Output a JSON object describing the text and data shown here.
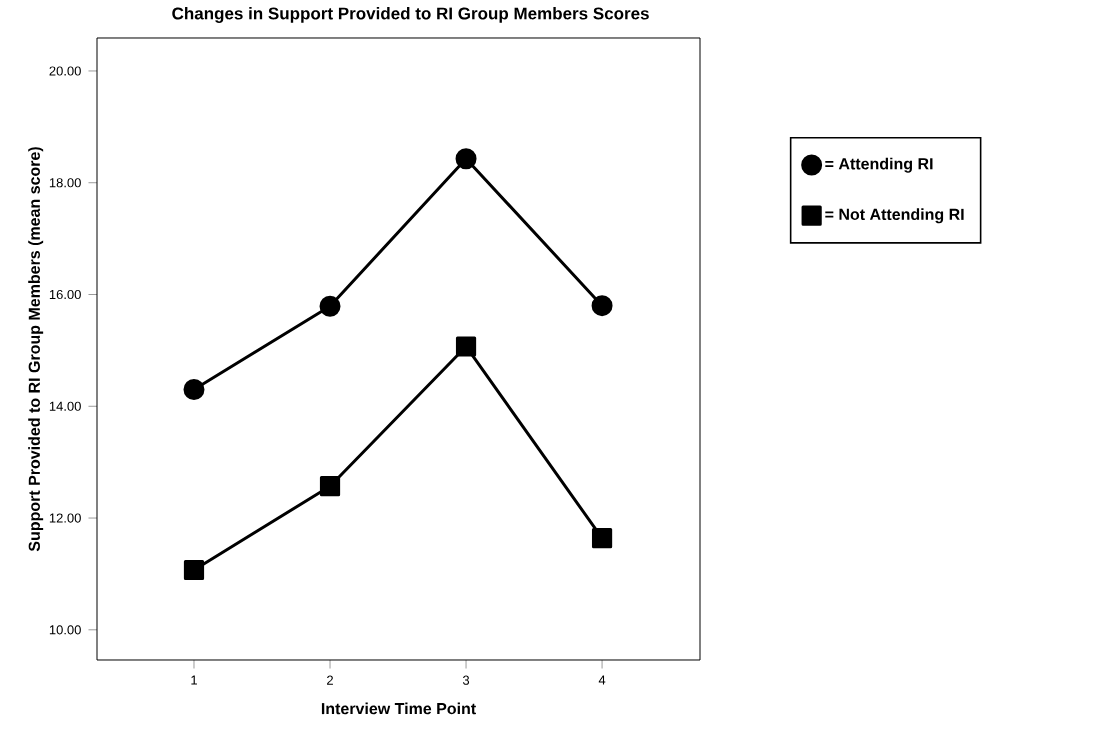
{
  "chart_data": {
    "type": "line",
    "title": "Changes in Support Provided to RI Group Members Scores",
    "xlabel": "Interview Time Point",
    "ylabel": "Support Provided to RI Group Members (mean score)",
    "categories": [
      "1",
      "2",
      "3",
      "4"
    ],
    "series": [
      {
        "name": "= Attending RI",
        "color": "#000000",
        "marker": "circle",
        "values": [
          14.3,
          15.79,
          18.43,
          15.8
        ]
      },
      {
        "name": "= Not Attending RI",
        "color": "#000000",
        "marker": "square",
        "values": [
          11.07,
          12.57,
          15.07,
          11.64
        ]
      }
    ],
    "ylim": [
      9.46,
      20.59
    ],
    "yticks": [
      {
        "value": 10,
        "label": "10.00"
      },
      {
        "value": 12,
        "label": "12.00"
      },
      {
        "value": 14,
        "label": "14.00"
      },
      {
        "value": 16,
        "label": "16.00"
      },
      {
        "value": 18,
        "label": "18.00"
      },
      {
        "value": 20,
        "label": "20.00"
      }
    ],
    "grid": false,
    "legend": "right",
    "line_style": "solid"
  }
}
